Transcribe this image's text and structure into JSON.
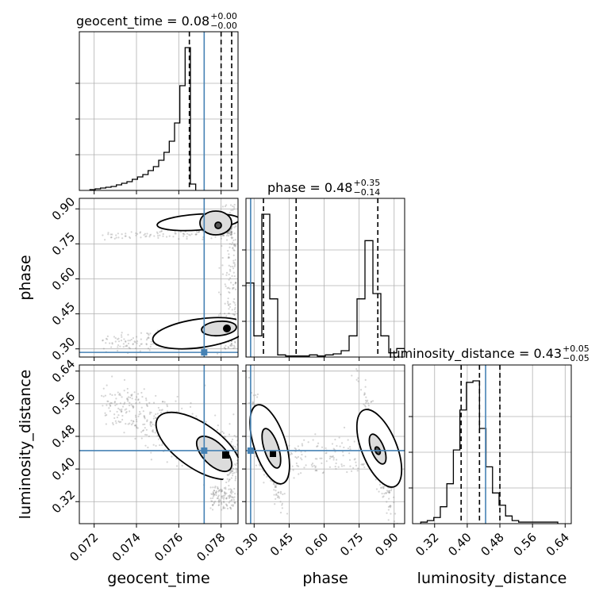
{
  "chart_data": {
    "type": "corner",
    "parameters": [
      "geocent_time",
      "phase",
      "luminosity_distance"
    ],
    "truths": {
      "geocent_time": 0.0772,
      "phase": 0.285,
      "luminosity_distance": 0.445
    },
    "titles": {
      "geocent_time": {
        "prefix": "geocent_time = 0.08",
        "plus": "+0.00",
        "minus": "−0.00"
      },
      "phase": {
        "prefix": "phase = 0.48",
        "plus": "+0.35",
        "minus": "−0.14"
      },
      "luminosity_distance": {
        "prefix": "luminosity_distance = 0.43",
        "plus": "+0.05",
        "minus": "−0.05"
      }
    },
    "axis_labels": {
      "geocent_time": "geocent_time",
      "phase": "phase",
      "luminosity_distance": "luminosity_distance"
    },
    "ranges": {
      "geocent_time": [
        0.0713,
        0.0788
      ],
      "phase": [
        0.265,
        0.945
      ],
      "luminosity_distance": [
        0.266,
        0.655
      ]
    },
    "ticks": {
      "geocent_time": {
        "values": [
          0.072,
          0.074,
          0.076,
          0.078
        ],
        "labels": [
          "0.072",
          "0.074",
          "0.076",
          "0.078"
        ]
      },
      "phase": {
        "values": [
          0.3,
          0.45,
          0.6,
          0.75,
          0.9
        ],
        "labels": [
          "0.30",
          "0.45",
          "0.60",
          "0.75",
          "0.90"
        ]
      },
      "luminosity_distance": {
        "values": [
          0.32,
          0.4,
          0.48,
          0.56,
          0.64
        ],
        "labels": [
          "0.32",
          "0.40",
          "0.48",
          "0.56",
          "0.64"
        ]
      }
    },
    "quantiles": {
      "geocent_time": [
        0.0765,
        0.078,
        0.0785
      ],
      "phase": [
        0.34,
        0.48,
        0.83
      ],
      "luminosity_distance": [
        0.385,
        0.43,
        0.48
      ]
    },
    "histograms": {
      "geocent_time": {
        "bin_start": 0.0718,
        "bin_width": 0.00025,
        "counts": [
          1,
          2,
          3,
          4,
          5,
          7,
          9,
          11,
          14,
          17,
          20,
          25,
          30,
          38,
          48,
          62,
          85,
          132,
          180,
          8
        ]
      },
      "phase": {
        "bin_start": 0.265,
        "bin_width": 0.034,
        "counts": [
          70,
          20,
          135,
          55,
          2,
          1,
          1,
          1,
          2,
          1,
          2,
          3,
          6,
          20,
          55,
          110,
          60,
          20,
          4,
          8
        ]
      },
      "luminosity_distance": {
        "bin_start": 0.286,
        "bin_width": 0.016,
        "counts": [
          1,
          2,
          4,
          11,
          26,
          48,
          74,
          92,
          93,
          62,
          37,
          20,
          12,
          5,
          2,
          1,
          1,
          1,
          1,
          1,
          1
        ]
      }
    },
    "grid": true
  }
}
